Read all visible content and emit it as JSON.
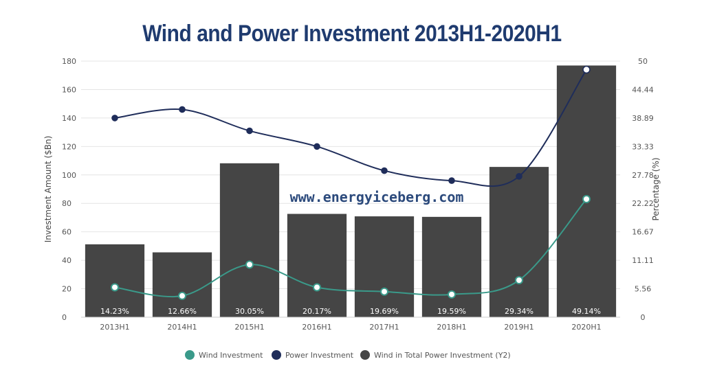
{
  "chart_data": {
    "type": "bar",
    "title": "Wind and Power Investment 2013H1-2020H1",
    "categories": [
      "2013H1",
      "2014H1",
      "2015H1",
      "2016H1",
      "2017H1",
      "2018H1",
      "2019H1",
      "2020H1"
    ],
    "ylabel": "Investment Amount ($Bn)",
    "y2label": "Percentage (%)",
    "ylim": [
      0,
      180
    ],
    "yticks": [
      "0",
      "20",
      "40",
      "60",
      "80",
      "100",
      "120",
      "140",
      "160",
      "180"
    ],
    "y2lim": [
      0,
      50
    ],
    "y2ticks": [
      "0",
      "5.56",
      "11.11",
      "16.67",
      "22.22",
      "27.78",
      "33.33",
      "38.89",
      "44.44",
      "50"
    ],
    "grid": true,
    "legend_position": "bottom",
    "watermark": "www.energyiceberg.com",
    "series": [
      {
        "name": "Wind Investment",
        "type": "line",
        "axis": "y",
        "color": "#3a9a8a",
        "values": [
          21,
          15,
          37,
          21,
          18,
          16,
          26,
          83
        ]
      },
      {
        "name": "Power Investment",
        "type": "line",
        "axis": "y",
        "color": "#1f2d5a",
        "values": [
          140,
          146,
          131,
          120,
          103,
          96,
          99,
          174
        ]
      },
      {
        "name": "Wind in Total Power Investment (Y2)",
        "type": "bar",
        "axis": "y2",
        "color": "#454545",
        "values": [
          14.23,
          12.66,
          30.05,
          20.17,
          19.69,
          19.59,
          29.34,
          49.14
        ],
        "labels": [
          "14.23%",
          "12.66%",
          "30.05%",
          "20.17%",
          "19.69%",
          "19.59%",
          "29.34%",
          "49.14%"
        ]
      }
    ]
  }
}
